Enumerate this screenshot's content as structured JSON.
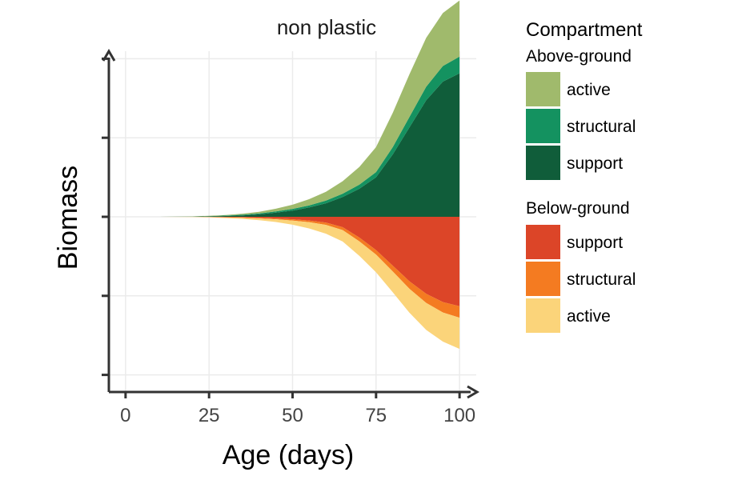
{
  "chart_data": {
    "type": "area",
    "title": "non plastic",
    "xlabel": "Age (days)",
    "ylabel": "Biomass",
    "xlim": [
      -5,
      105
    ],
    "xticks": [
      0,
      25,
      50,
      75,
      100
    ],
    "ylim": [
      -1.0,
      1.0
    ],
    "y_tick_labels_shown": false,
    "grid": true,
    "legend_position": "right",
    "x": [
      0,
      10,
      20,
      25,
      30,
      35,
      40,
      45,
      50,
      55,
      60,
      65,
      70,
      75,
      80,
      85,
      90,
      95,
      100
    ],
    "above_ground": {
      "label": "Above-ground",
      "series": [
        {
          "name": "support",
          "color": "#105d3a",
          "values": [
            0,
            0,
            0.001,
            0.002,
            0.004,
            0.007,
            0.012,
            0.02,
            0.03,
            0.045,
            0.065,
            0.095,
            0.135,
            0.19,
            0.3,
            0.43,
            0.56,
            0.65,
            0.69
          ]
        },
        {
          "name": "structural",
          "color": "#149260",
          "values": [
            0,
            0,
            0,
            0.001,
            0.002,
            0.003,
            0.004,
            0.006,
            0.008,
            0.01,
            0.013,
            0.016,
            0.02,
            0.025,
            0.035,
            0.05,
            0.065,
            0.075,
            0.08
          ]
        },
        {
          "name": "active",
          "color": "#a0ba6c",
          "values": [
            0,
            0,
            0.001,
            0.002,
            0.003,
            0.005,
            0.008,
            0.013,
            0.02,
            0.03,
            0.042,
            0.06,
            0.085,
            0.12,
            0.165,
            0.205,
            0.235,
            0.255,
            0.27
          ]
        }
      ]
    },
    "below_ground": {
      "label": "Below-ground",
      "series": [
        {
          "name": "support",
          "color": "#dc4528",
          "values": [
            0,
            0,
            0,
            0.001,
            0.002,
            0.003,
            0.005,
            0.008,
            0.012,
            0.018,
            0.028,
            0.05,
            0.1,
            0.16,
            0.235,
            0.31,
            0.37,
            0.41,
            0.43
          ]
        },
        {
          "name": "structural",
          "color": "#f47b21",
          "values": [
            0,
            0,
            0,
            0,
            0.001,
            0.002,
            0.003,
            0.004,
            0.006,
            0.008,
            0.011,
            0.014,
            0.018,
            0.022,
            0.028,
            0.036,
            0.044,
            0.05,
            0.055
          ]
        },
        {
          "name": "active",
          "color": "#fbd47a",
          "values": [
            0,
            0,
            0.001,
            0.002,
            0.003,
            0.005,
            0.008,
            0.013,
            0.02,
            0.03,
            0.042,
            0.055,
            0.07,
            0.085,
            0.1,
            0.115,
            0.13,
            0.14,
            0.15
          ]
        }
      ]
    },
    "legend_title": "Compartment"
  }
}
